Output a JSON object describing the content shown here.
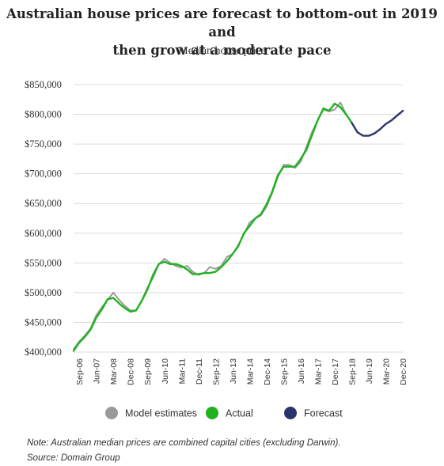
{
  "chart_data": {
    "type": "line",
    "title": "Australian house prices are forecast to bottom-out in 2019 and then grow at a moderate pace",
    "title_lines": [
      "Australian house prices are forecast to bottom-out in 2019 and",
      "then grow at a moderate pace"
    ],
    "subtitle": "Median house price",
    "ylim": [
      400000,
      850000
    ],
    "y_ticks": [
      {
        "value": 400000,
        "label": "$400,000"
      },
      {
        "value": 450000,
        "label": "$450,000"
      },
      {
        "value": 500000,
        "label": "$500,000"
      },
      {
        "value": 550000,
        "label": "$550,000"
      },
      {
        "value": 600000,
        "label": "$600,000"
      },
      {
        "value": 650000,
        "label": "$650,000"
      },
      {
        "value": 700000,
        "label": "$700,000"
      },
      {
        "value": 750000,
        "label": "$750,000"
      },
      {
        "value": 800000,
        "label": "$800,000"
      },
      {
        "value": 850000,
        "label": "$850,000"
      }
    ],
    "x_range": [
      "Jun-06",
      "Dec-20"
    ],
    "x_ticks": [
      "Sep-06",
      "Jun-07",
      "Mar-08",
      "Dec-08",
      "Sep-09",
      "Jun-10",
      "Mar-11",
      "Dec-11",
      "Sep-12",
      "Jun-13",
      "Mar-14",
      "Dec-14",
      "Sep-15",
      "Jun-16",
      "Mar-17",
      "Dec-17",
      "Sep-18",
      "Jun-19",
      "Mar-20",
      "Dec-20"
    ],
    "legend_position": "bottom",
    "grid": true,
    "series": [
      {
        "name": "Model estimates",
        "color": "#9a9a9a",
        "x": [
          "Jun-06",
          "Sep-06",
          "Dec-06",
          "Mar-07",
          "Jun-07",
          "Sep-07",
          "Dec-07",
          "Mar-08",
          "Jun-08",
          "Sep-08",
          "Dec-08",
          "Mar-09",
          "Jun-09",
          "Sep-09",
          "Dec-09",
          "Mar-10",
          "Jun-10",
          "Sep-10",
          "Dec-10",
          "Mar-11",
          "Jun-11",
          "Sep-11",
          "Dec-11",
          "Mar-12",
          "Jun-12",
          "Sep-12",
          "Dec-12",
          "Mar-13",
          "Jun-13",
          "Sep-13",
          "Dec-13",
          "Mar-14",
          "Jun-14",
          "Sep-14",
          "Dec-14",
          "Mar-15",
          "Jun-15",
          "Sep-15",
          "Dec-15",
          "Mar-16",
          "Jun-16",
          "Sep-16",
          "Dec-16",
          "Mar-17",
          "Jun-17",
          "Sep-17",
          "Dec-17",
          "Mar-18",
          "Jun-18"
        ],
        "values": [
          405000,
          418000,
          428000,
          440000,
          462000,
          476000,
          488000,
          500000,
          488000,
          478000,
          470000,
          470000,
          487000,
          508000,
          525000,
          548000,
          557000,
          550000,
          545000,
          542000,
          545000,
          535000,
          530000,
          533000,
          543000,
          540000,
          545000,
          560000,
          565000,
          580000,
          598000,
          618000,
          625000,
          630000,
          645000,
          668000,
          695000,
          715000,
          715000,
          710000,
          720000,
          745000,
          770000,
          790000,
          808000,
          805000,
          808000,
          820000,
          800000
        ]
      },
      {
        "name": "Actual",
        "color": "#1fb31f",
        "x": [
          "Jun-06",
          "Sep-06",
          "Dec-06",
          "Mar-07",
          "Jun-07",
          "Sep-07",
          "Dec-07",
          "Mar-08",
          "Jun-08",
          "Sep-08",
          "Dec-08",
          "Mar-09",
          "Jun-09",
          "Sep-09",
          "Dec-09",
          "Mar-10",
          "Jun-10",
          "Sep-10",
          "Dec-10",
          "Mar-11",
          "Jun-11",
          "Sep-11",
          "Dec-11",
          "Mar-12",
          "Jun-12",
          "Sep-12",
          "Dec-12",
          "Mar-13",
          "Jun-13",
          "Sep-13",
          "Dec-13",
          "Mar-14",
          "Jun-14",
          "Sep-14",
          "Dec-14",
          "Mar-15",
          "Jun-15",
          "Sep-15",
          "Dec-15",
          "Mar-16",
          "Jun-16",
          "Sep-16",
          "Dec-16",
          "Mar-17",
          "Jun-17",
          "Sep-17",
          "Dec-17",
          "Mar-18",
          "Jun-18",
          "Sep-18"
        ],
        "values": [
          402000,
          416000,
          426000,
          438000,
          458000,
          472000,
          489000,
          491000,
          482000,
          474000,
          468000,
          470000,
          486000,
          505000,
          530000,
          548000,
          552000,
          548000,
          548000,
          545000,
          539000,
          531000,
          531000,
          533000,
          533000,
          535000,
          543000,
          553000,
          565000,
          578000,
          600000,
          612000,
          625000,
          632000,
          649000,
          670000,
          698000,
          712000,
          712000,
          712000,
          725000,
          740000,
          765000,
          790000,
          810000,
          806000,
          818000,
          812000,
          800000,
          786000
        ]
      },
      {
        "name": "Forecast",
        "color": "#2b336b",
        "x": [
          "Sep-18",
          "Dec-18",
          "Mar-19",
          "Jun-19",
          "Sep-19",
          "Dec-19",
          "Mar-20",
          "Jun-20",
          "Sep-20",
          "Dec-20"
        ],
        "values": [
          786000,
          770000,
          764000,
          764000,
          768000,
          775000,
          784000,
          790000,
          798000,
          806000
        ]
      }
    ]
  },
  "notes": {
    "note": "Note: Australian median prices are combined capital cities (excluding Darwin).",
    "source": "Source: Domain Group"
  }
}
